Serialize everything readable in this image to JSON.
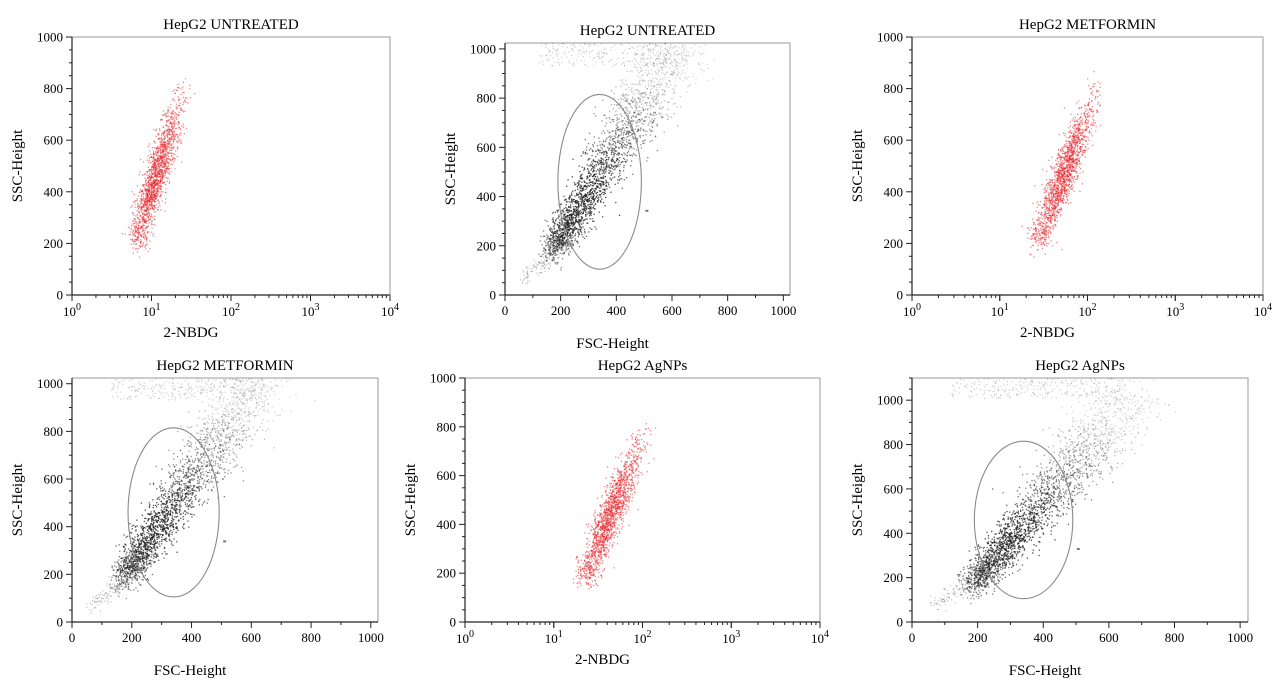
{
  "figure": {
    "background": "#ffffff",
    "dot_red": "#e8262b",
    "dot_black": "#222222",
    "gate_color": "#8a8a8a"
  },
  "chart_data": [
    {
      "type": "scatter",
      "title": "HepG2 UNTREATED",
      "xlabel": "2-NBDG",
      "ylabel": "SSC-Height",
      "xscale": "log",
      "xlim": [
        1,
        10000
      ],
      "ylim": [
        0,
        1000
      ],
      "xticks": [
        {
          "base": "10",
          "exp": "0"
        },
        {
          "base": "10",
          "exp": "1"
        },
        {
          "base": "10",
          "exp": "2"
        },
        {
          "base": "10",
          "exp": "3"
        },
        {
          "base": "10",
          "exp": "4"
        }
      ],
      "yticks": [
        "0",
        "200",
        "400",
        "600",
        "800",
        "1000"
      ],
      "dot_color": "#e8262b",
      "cloud": {
        "x_start": 7,
        "y_start": 250,
        "x_end": 22,
        "y_end": 760
      }
    },
    {
      "type": "scatter",
      "title": "HepG2 UNTREATED",
      "xlabel": "FSC-Height",
      "ylabel": "SSC-Height",
      "xscale": "linear",
      "xlim": [
        0,
        1024
      ],
      "ylim": [
        0,
        1024
      ],
      "xticks": [
        "0",
        "200",
        "400",
        "600",
        "800",
        "1000"
      ],
      "yticks": [
        "0",
        "200",
        "400",
        "600",
        "800",
        "1000"
      ],
      "dot_color": "#222222",
      "cloud": {
        "x_start": 200,
        "y_start": 240,
        "x_end": 560,
        "y_end": 900
      },
      "gate": {
        "type": "ellipse",
        "cx": 340,
        "cy": 460,
        "rx": 300,
        "ry": 355
      }
    },
    {
      "type": "scatter",
      "title": "HepG2 METFORMIN",
      "xlabel": "2-NBDG",
      "ylabel": "SSC-Height",
      "xscale": "log",
      "xlim": [
        1,
        10000
      ],
      "ylim": [
        0,
        1000
      ],
      "xticks": [
        {
          "base": "10",
          "exp": "0"
        },
        {
          "base": "10",
          "exp": "1"
        },
        {
          "base": "10",
          "exp": "2"
        },
        {
          "base": "10",
          "exp": "3"
        },
        {
          "base": "10",
          "exp": "4"
        }
      ],
      "yticks": [
        "0",
        "200",
        "400",
        "600",
        "800",
        "1000"
      ],
      "dot_color": "#e8262b",
      "cloud": {
        "x_start": 30,
        "y_start": 250,
        "x_end": 110,
        "y_end": 760
      }
    },
    {
      "type": "scatter",
      "title": "HepG2 METFORMIN",
      "xlabel": "FSC-Height",
      "ylabel": "SSC-Height",
      "xscale": "linear",
      "xlim": [
        0,
        1024
      ],
      "ylim": [
        0,
        1024
      ],
      "xticks": [
        "0",
        "200",
        "400",
        "600",
        "800",
        "1000"
      ],
      "yticks": [
        "0",
        "200",
        "400",
        "600",
        "800",
        "1000"
      ],
      "dot_color": "#222222",
      "cloud": {
        "x_start": 200,
        "y_start": 240,
        "x_end": 560,
        "y_end": 900
      },
      "gate": {
        "type": "ellipse",
        "cx": 340,
        "cy": 460,
        "rx": 305,
        "ry": 355
      }
    },
    {
      "type": "scatter",
      "title": "HepG2 AgNPs",
      "xlabel": "2-NBDG",
      "ylabel": "SSC-Height",
      "xscale": "log",
      "xlim": [
        1,
        10000
      ],
      "ylim": [
        0,
        1000
      ],
      "xticks": [
        {
          "base": "10",
          "exp": "0"
        },
        {
          "base": "10",
          "exp": "1"
        },
        {
          "base": "10",
          "exp": "2"
        },
        {
          "base": "10",
          "exp": "3"
        },
        {
          "base": "10",
          "exp": "4"
        }
      ],
      "yticks": [
        "0",
        "200",
        "400",
        "600",
        "800",
        "1000"
      ],
      "dot_color": "#e8262b",
      "cloud": {
        "x_start": 25,
        "y_start": 220,
        "x_end": 90,
        "y_end": 740
      }
    },
    {
      "type": "scatter",
      "title": "HepG2 AgNPs",
      "xlabel": "FSC-Height",
      "ylabel": "SSC-Height",
      "xscale": "linear",
      "xlim": [
        0,
        1024
      ],
      "ylim": [
        0,
        1100
      ],
      "xticks": [
        "0",
        "200",
        "400",
        "600",
        "800",
        "1000"
      ],
      "yticks": [
        "0",
        "200",
        "400",
        "600",
        "800",
        "1000"
      ],
      "dot_color": "#222222",
      "cloud": {
        "x_start": 220,
        "y_start": 230,
        "x_end": 600,
        "y_end": 900
      },
      "gate": {
        "type": "ellipse",
        "cx": 340,
        "cy": 460,
        "rx": 300,
        "ry": 355
      }
    }
  ]
}
